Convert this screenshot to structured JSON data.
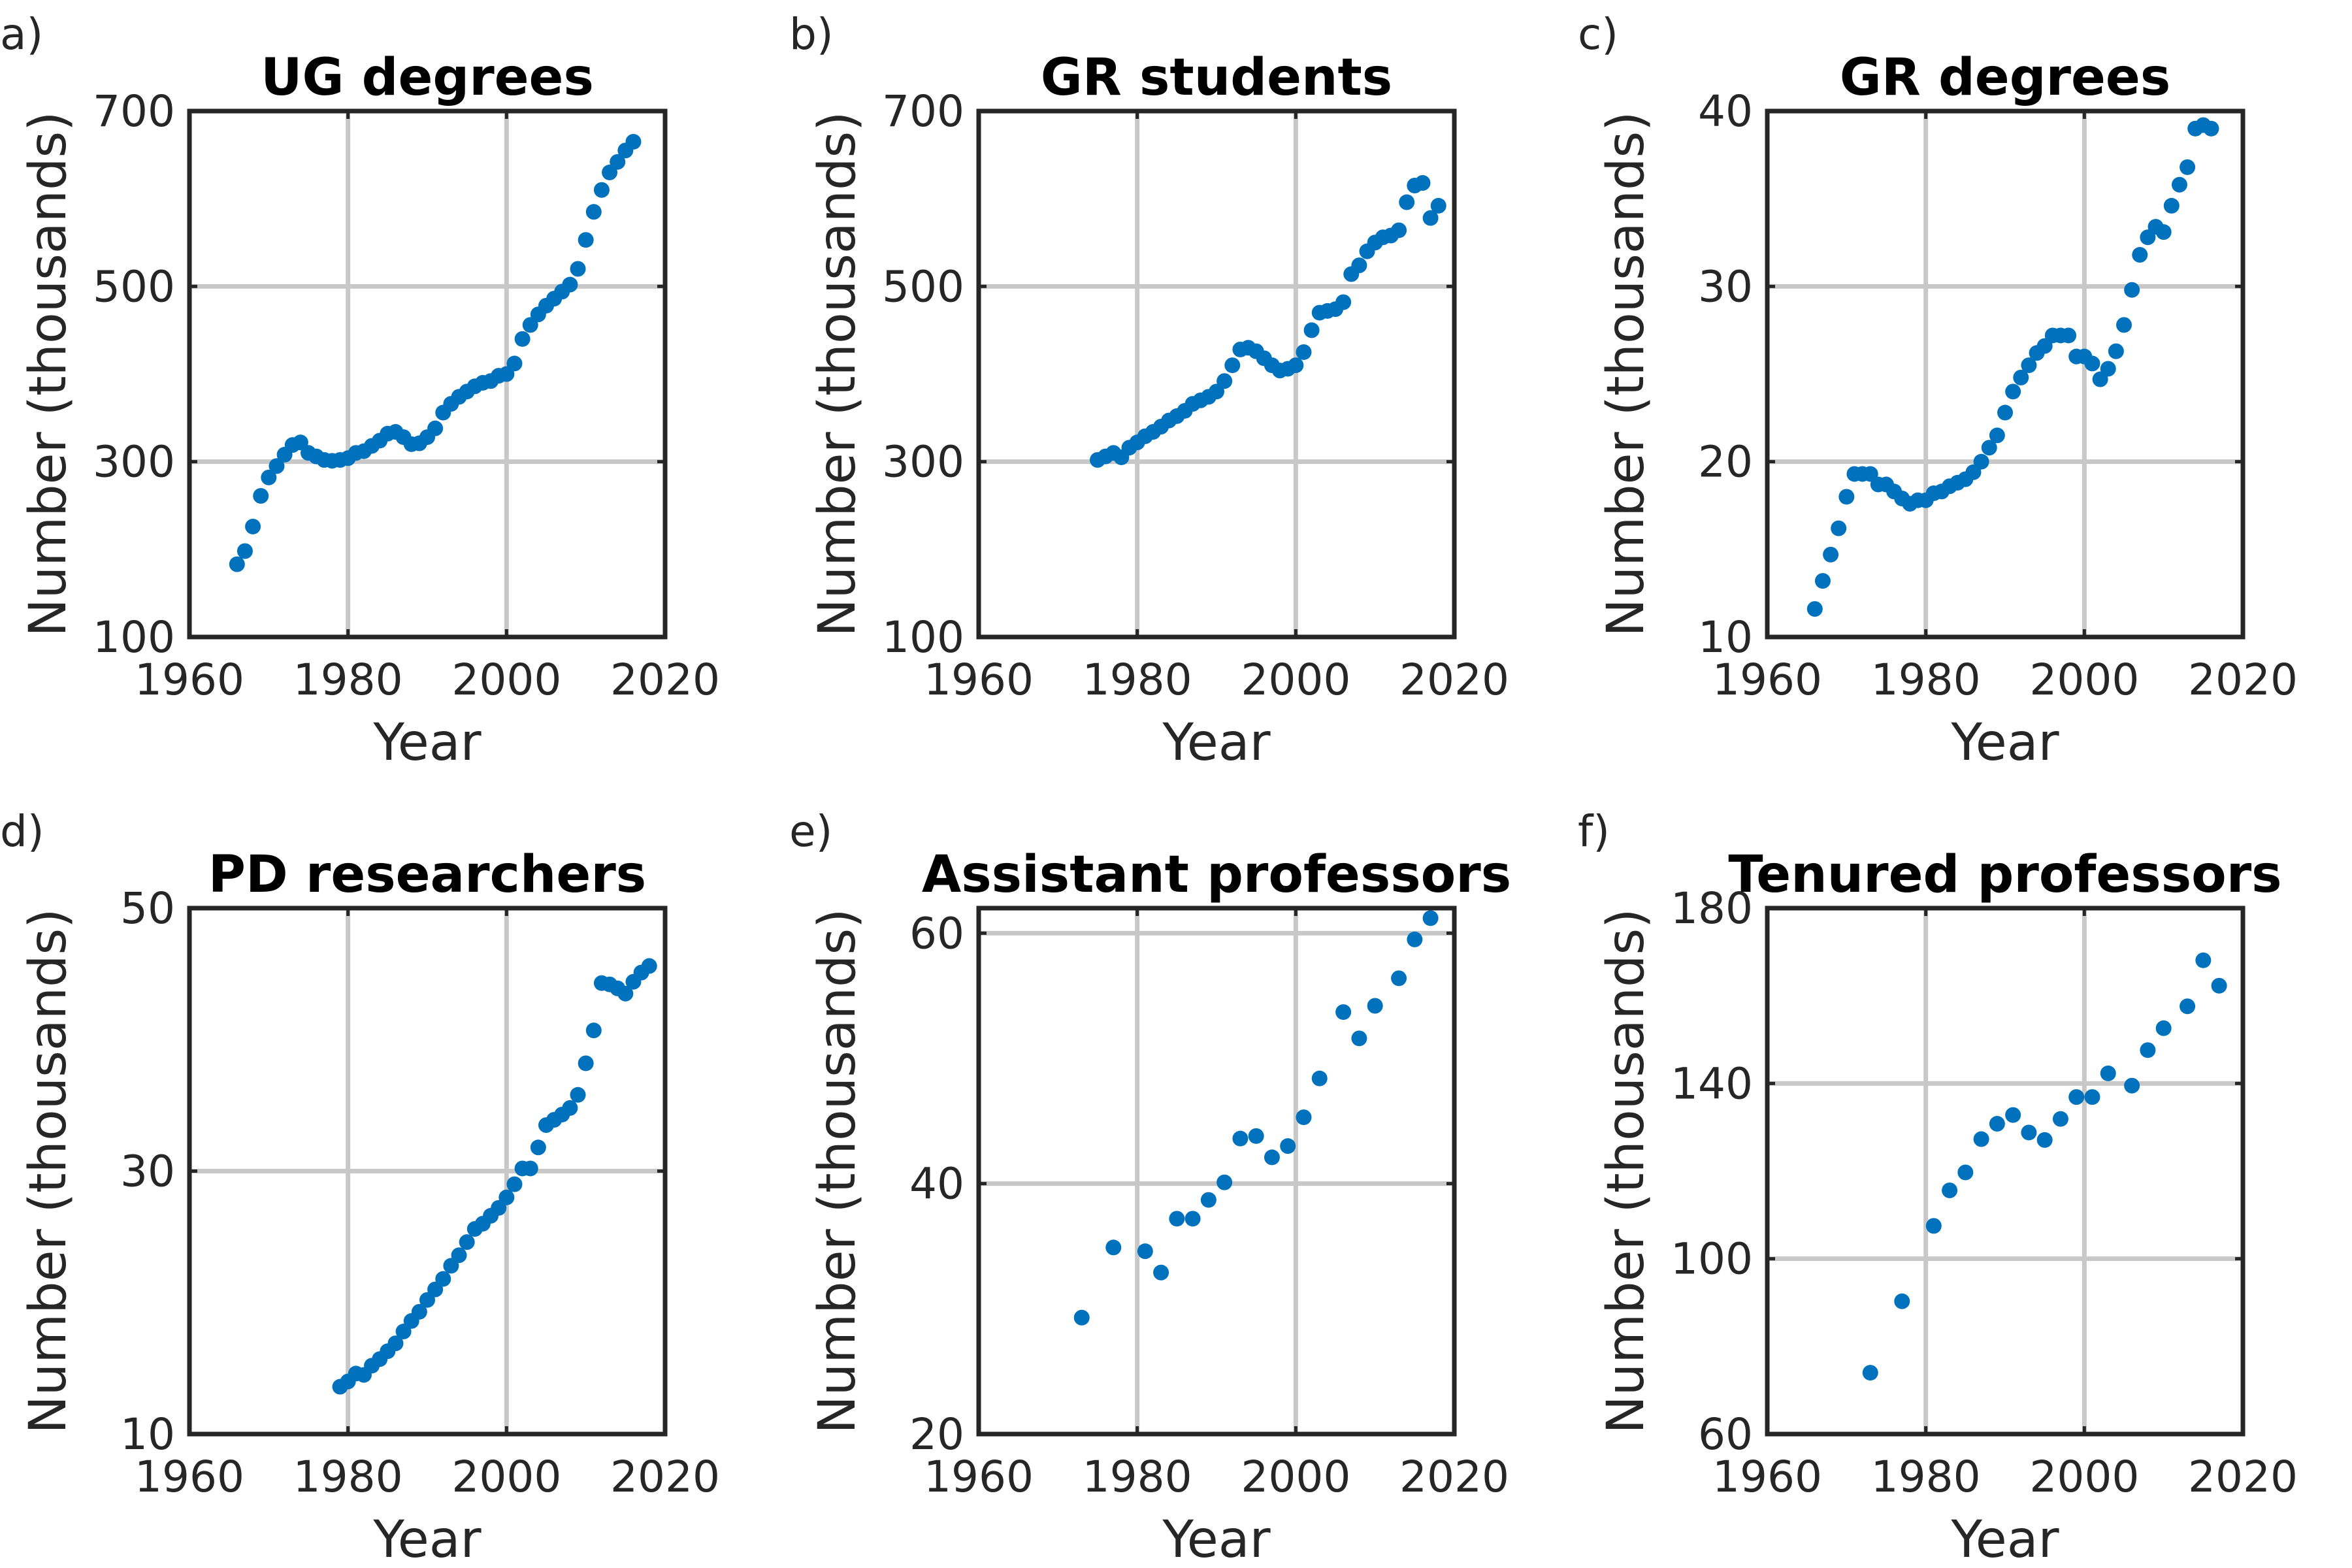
{
  "chart_data": [
    {
      "type": "scatter",
      "panel": "a)",
      "title": "UG degrees",
      "xlabel": "Year",
      "ylabel": "Number (thousands)",
      "xlim": [
        1960,
        2020
      ],
      "ylim": [
        100,
        700
      ],
      "xticks": [
        "1960",
        "1980",
        "2000",
        "2020"
      ],
      "yticks": [
        "100",
        "300",
        "500",
        "700"
      ],
      "grid": true,
      "color": "#0072BD",
      "x": [
        1966,
        1967,
        1968,
        1969,
        1970,
        1971,
        1972,
        1973,
        1974,
        1975,
        1976,
        1977,
        1978,
        1979,
        1980,
        1981,
        1982,
        1983,
        1984,
        1985,
        1986,
        1987,
        1988,
        1989,
        1990,
        1991,
        1992,
        1993,
        1994,
        1995,
        1996,
        1997,
        1998,
        1999,
        2000,
        2001,
        2002,
        2003,
        2004,
        2005,
        2006,
        2007,
        2008,
        2009,
        2010,
        2011,
        2012,
        2013,
        2014,
        2015,
        2016
      ],
      "y": [
        183,
        198,
        226,
        261,
        282,
        295,
        308,
        319,
        322,
        310,
        306,
        302,
        301,
        302,
        304,
        310,
        312,
        318,
        324,
        332,
        334,
        328,
        320,
        321,
        328,
        338,
        356,
        366,
        374,
        380,
        386,
        390,
        392,
        398,
        400,
        412,
        440,
        456,
        468,
        478,
        486,
        494,
        502,
        520,
        553,
        585,
        610,
        630,
        642,
        655,
        665
      ]
    },
    {
      "type": "scatter",
      "panel": "b)",
      "title": "GR students",
      "xlabel": "Year",
      "ylabel": "Number (thousands)",
      "xlim": [
        1960,
        2020
      ],
      "ylim": [
        100,
        700
      ],
      "xticks": [
        "1960",
        "1980",
        "2000",
        "2020"
      ],
      "yticks": [
        "100",
        "300",
        "500",
        "700"
      ],
      "grid": true,
      "color": "#0072BD",
      "x": [
        1975,
        1976,
        1977,
        1978,
        1979,
        1980,
        1981,
        1982,
        1983,
        1984,
        1985,
        1986,
        1987,
        1988,
        1989,
        1990,
        1991,
        1992,
        1993,
        1994,
        1995,
        1996,
        1997,
        1998,
        1999,
        2000,
        2001,
        2002,
        2003,
        2004,
        2005,
        2006,
        2007,
        2008,
        2009,
        2010,
        2011,
        2012,
        2013,
        2014,
        2015,
        2016,
        2017,
        2018
      ],
      "y": [
        302,
        306,
        310,
        305,
        316,
        322,
        329,
        334,
        340,
        347,
        352,
        358,
        366,
        370,
        374,
        380,
        392,
        410,
        428,
        430,
        426,
        418,
        410,
        404,
        406,
        410,
        425,
        450,
        470,
        472,
        474,
        482,
        514,
        524,
        540,
        550,
        556,
        558,
        564,
        596,
        615,
        618,
        578,
        592
      ]
    },
    {
      "type": "scatter",
      "panel": "c)",
      "title": "GR degrees",
      "xlabel": "Year",
      "ylabel": "Number (thousands)",
      "xlim": [
        1960,
        2020
      ],
      "ylim": [
        10,
        40
      ],
      "xticks": [
        "1960",
        "1980",
        "2000",
        "2020"
      ],
      "yticks": [
        "10",
        "20",
        "30",
        "40"
      ],
      "grid": true,
      "color": "#0072BD",
      "x": [
        1966,
        1967,
        1968,
        1969,
        1970,
        1971,
        1972,
        1973,
        1974,
        1975,
        1976,
        1977,
        1978,
        1979,
        1980,
        1981,
        1982,
        1983,
        1984,
        1985,
        1986,
        1987,
        1988,
        1989,
        1990,
        1991,
        1992,
        1993,
        1994,
        1995,
        1996,
        1997,
        1998,
        1999,
        2000,
        2001,
        2002,
        2003,
        2004,
        2005,
        2006,
        2007,
        2008,
        2009,
        2010,
        2011,
        2012,
        2013,
        2014,
        2015,
        2016
      ],
      "y": [
        11.6,
        13.2,
        14.7,
        16.2,
        18.0,
        19.3,
        19.3,
        19.3,
        18.7,
        18.7,
        18.3,
        17.9,
        17.6,
        17.8,
        17.8,
        18.2,
        18.3,
        18.6,
        18.8,
        19.0,
        19.4,
        20.0,
        20.8,
        21.5,
        22.8,
        24.0,
        24.8,
        25.5,
        26.2,
        26.6,
        27.2,
        27.2,
        27.2,
        26.0,
        26.0,
        25.6,
        24.7,
        25.3,
        26.3,
        27.8,
        29.8,
        31.8,
        32.8,
        33.4,
        33.1,
        34.6,
        35.8,
        36.8,
        39.0,
        39.2,
        39.0
      ]
    },
    {
      "type": "scatter",
      "panel": "d)",
      "title": "PD researchers",
      "xlabel": "Year",
      "ylabel": "Number (thousands)",
      "xlim": [
        1960,
        2020
      ],
      "ylim": [
        10,
        50
      ],
      "xticks": [
        "1960",
        "1980",
        "2000",
        "2020"
      ],
      "yticks": [
        "10",
        "30",
        "50"
      ],
      "grid": true,
      "color": "#0072BD",
      "x": [
        1979,
        1980,
        1981,
        1982,
        1983,
        1984,
        1985,
        1986,
        1987,
        1988,
        1989,
        1990,
        1991,
        1992,
        1993,
        1994,
        1995,
        1996,
        1997,
        1998,
        1999,
        2000,
        2001,
        2002,
        2003,
        2004,
        2005,
        2006,
        2007,
        2008,
        2009,
        2010,
        2011,
        2012,
        2013,
        2014,
        2015,
        2016,
        2017,
        2018
      ],
      "y": [
        13.6,
        14.0,
        14.6,
        14.5,
        15.2,
        15.7,
        16.3,
        16.9,
        17.8,
        18.6,
        19.3,
        20.2,
        21.0,
        21.8,
        22.8,
        23.6,
        24.6,
        25.6,
        26.0,
        26.6,
        27.2,
        28.0,
        29.0,
        30.2,
        30.2,
        31.8,
        33.5,
        33.9,
        34.3,
        34.8,
        35.8,
        38.2,
        40.7,
        44.3,
        44.2,
        43.9,
        43.5,
        44.4,
        45.1,
        45.6
      ]
    },
    {
      "type": "scatter",
      "panel": "e)",
      "title": "Assistant professors",
      "xlabel": "Year",
      "ylabel": "Number (thousands)",
      "xlim": [
        1960,
        2020
      ],
      "ylim": [
        20,
        62
      ],
      "xticks": [
        "1960",
        "1980",
        "2000",
        "2020"
      ],
      "yticks": [
        "20",
        "40",
        "60"
      ],
      "grid": true,
      "color": "#0072BD",
      "x": [
        1973,
        1977,
        1981,
        1983,
        1985,
        1987,
        1989,
        1991,
        1993,
        1995,
        1997,
        1999,
        2001,
        2003,
        2006,
        2008,
        2010,
        2013,
        2015,
        2017
      ],
      "y": [
        29.3,
        34.9,
        34.6,
        32.9,
        37.2,
        37.2,
        38.7,
        40.1,
        43.6,
        43.8,
        42.1,
        43.0,
        45.3,
        48.4,
        53.7,
        51.6,
        54.2,
        56.4,
        59.5,
        61.2
      ]
    },
    {
      "type": "scatter",
      "panel": "f)",
      "title": "Tenured professors",
      "xlabel": "Year",
      "ylabel": "Number (thousands)",
      "xlim": [
        1960,
        2020
      ],
      "ylim": [
        60,
        180
      ],
      "xticks": [
        "1960",
        "1980",
        "2000",
        "2020"
      ],
      "yticks": [
        "60",
        "100",
        "140",
        "180"
      ],
      "grid": true,
      "color": "#0072BD",
      "x": [
        1973,
        1977,
        1981,
        1983,
        1985,
        1987,
        1989,
        1991,
        1993,
        1995,
        1997,
        1999,
        2001,
        2003,
        2006,
        2008,
        2010,
        2013,
        2015,
        2017
      ],
      "y": [
        74.0,
        90.3,
        107.5,
        115.6,
        119.7,
        127.3,
        130.8,
        132.8,
        128.8,
        127.1,
        131.9,
        136.9,
        136.9,
        142.3,
        139.5,
        147.6,
        152.6,
        157.6,
        168.1,
        162.3
      ]
    }
  ]
}
